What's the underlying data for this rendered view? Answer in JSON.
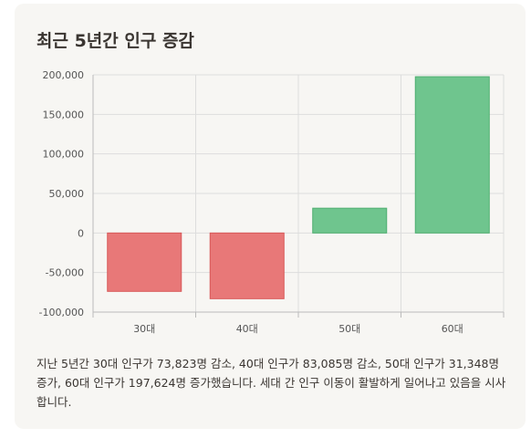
{
  "card": {
    "title": "최근 5년간 인구 증감",
    "description": "지난 5년간 30대 인구가 73,823명 감소, 40대 인구가 83,085명 감소, 50대 인구가 31,348명 증가, 60대 인구가 197,624명 증가했습니다. 세대 간 인구 이동이 활발하게 일어나고 있음을 시사합니다."
  },
  "colors": {
    "negative_fill": "#e87878",
    "negative_stroke": "#d85858",
    "positive_fill": "#6fc58e",
    "positive_stroke": "#4fae70",
    "grid": "#dddddd",
    "axis": "#bbbbbb",
    "text": "#555555"
  },
  "chart_data": {
    "type": "bar",
    "categories": [
      "30대",
      "40대",
      "50대",
      "60대"
    ],
    "values": [
      -73823,
      -83085,
      31348,
      197624
    ],
    "ylim": [
      -100000,
      200000
    ],
    "yticks": [
      200000,
      150000,
      100000,
      50000,
      0,
      -50000,
      -100000
    ],
    "ytick_labels": [
      "200,000",
      "150,000",
      "100,000",
      "50,000",
      "0",
      "-50,000",
      "-100,000"
    ],
    "grid": true
  }
}
